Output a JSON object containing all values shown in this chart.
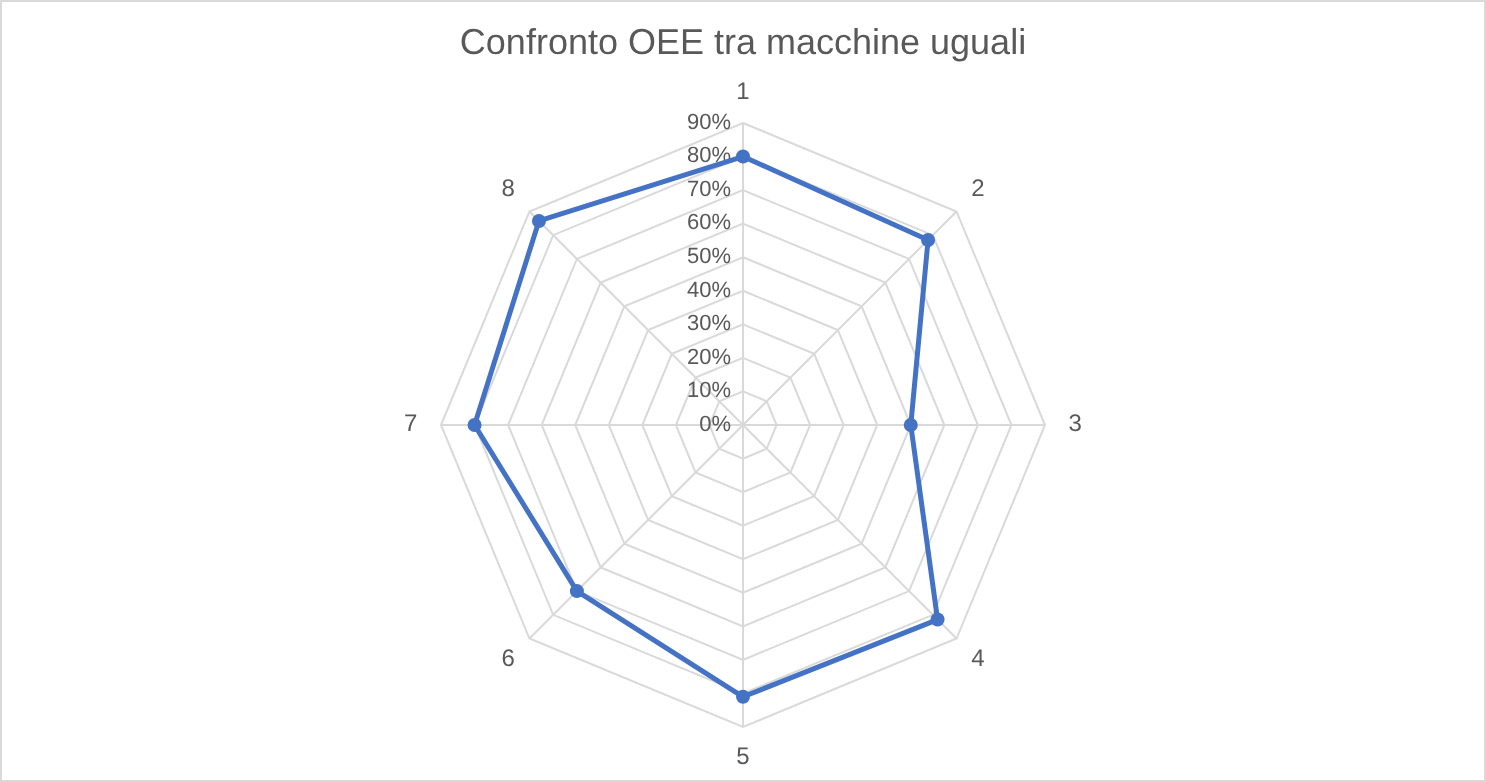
{
  "chart_data": {
    "type": "radar",
    "title": "Confronto OEE tra macchine uguali",
    "categories": [
      "1",
      "2",
      "3",
      "4",
      "5",
      "6",
      "7",
      "8"
    ],
    "series": [
      {
        "color": "#4472c4",
        "values": [
          0.8,
          0.78,
          0.5,
          0.82,
          0.81,
          0.7,
          0.8,
          0.86
        ]
      }
    ],
    "ylim": [
      0,
      0.9
    ],
    "yticks": [
      {
        "value": 0,
        "label": "0%"
      },
      {
        "value": 0.1,
        "label": "10%"
      },
      {
        "value": 0.2,
        "label": "20%"
      },
      {
        "value": 0.3,
        "label": "30%"
      },
      {
        "value": 0.4,
        "label": "40%"
      },
      {
        "value": 0.5,
        "label": "50%"
      },
      {
        "value": 0.6,
        "label": "60%"
      },
      {
        "value": 0.7,
        "label": "70%"
      },
      {
        "value": 0.8,
        "label": "80%"
      },
      {
        "value": 0.9,
        "label": "90%"
      }
    ],
    "grid": true,
    "marker": "circle",
    "line_style": "solid"
  }
}
